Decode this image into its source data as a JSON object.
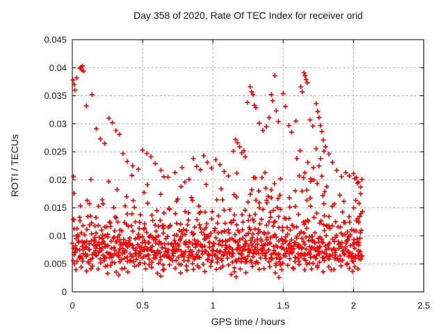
{
  "chart_data": {
    "type": "scatter",
    "title": "Day 358 of 2020, Rate Of TEC Index for receiver orid",
    "xlabel": "GPS time / hours",
    "ylabel": "ROTI / TECUs",
    "xlim": [
      0,
      2.5
    ],
    "ylim": [
      0,
      0.045
    ],
    "xticks": {
      "values": [
        0,
        0.5,
        1,
        1.5,
        2,
        2.5
      ],
      "labels": [
        "0",
        "0.5",
        "1",
        "1.5",
        "2",
        "2.5"
      ]
    },
    "yticks": {
      "values": [
        0,
        0.005,
        0.01,
        0.015,
        0.02,
        0.025,
        0.03,
        0.035,
        0.04,
        0.045
      ],
      "labels": [
        "0",
        "0.005",
        "0.01",
        "0.015",
        "0.02",
        "0.025",
        "0.03",
        "0.035",
        "0.04",
        "0.045"
      ]
    },
    "grid": {
      "style": "dashed",
      "color": "#a0a0a0"
    },
    "legend": "none",
    "marker": {
      "shape": "plus",
      "color": "#ff0000",
      "half_size": 3.4,
      "stroke_width": 1.7
    },
    "x_data_range": [
      0,
      2.07
    ],
    "notable_points": [
      [
        0.005,
        0.0378
      ],
      [
        0.012,
        0.037
      ],
      [
        0.018,
        0.036
      ],
      [
        0.008,
        0.0206
      ],
      [
        0.03,
        0.0382
      ],
      [
        0.055,
        0.0399
      ],
      [
        0.062,
        0.0401
      ],
      [
        0.068,
        0.0396
      ],
      [
        0.072,
        0.0403
      ],
      [
        0.08,
        0.0394
      ],
      [
        0.1,
        0.0332
      ],
      [
        0.14,
        0.0352
      ],
      [
        0.17,
        0.0291
      ],
      [
        0.2,
        0.0273
      ],
      [
        0.23,
        0.0265
      ],
      [
        0.26,
        0.031
      ],
      [
        0.285,
        0.0302
      ],
      [
        0.31,
        0.0288
      ],
      [
        0.335,
        0.0281
      ],
      [
        0.36,
        0.0247
      ],
      [
        0.39,
        0.0233
      ],
      [
        0.43,
        0.0225
      ],
      [
        0.47,
        0.0219
      ],
      [
        0.5,
        0.0253
      ],
      [
        0.53,
        0.0247
      ],
      [
        0.56,
        0.0241
      ],
      [
        0.59,
        0.0229
      ],
      [
        0.63,
        0.0217
      ],
      [
        0.68,
        0.0205
      ],
      [
        0.73,
        0.0213
      ],
      [
        0.78,
        0.0222
      ],
      [
        0.8,
        0.0196
      ],
      [
        0.83,
        0.0201
      ],
      [
        0.86,
        0.0238
      ],
      [
        0.885,
        0.0224
      ],
      [
        0.91,
        0.0218
      ],
      [
        0.935,
        0.0243
      ],
      [
        0.96,
        0.0231
      ],
      [
        0.99,
        0.0221
      ],
      [
        1.02,
        0.0236
      ],
      [
        1.05,
        0.0227
      ],
      [
        1.08,
        0.0215
      ],
      [
        1.11,
        0.0207
      ],
      [
        1.145,
        0.0251
      ],
      [
        1.16,
        0.0272
      ],
      [
        1.175,
        0.0266
      ],
      [
        1.19,
        0.0259
      ],
      [
        1.205,
        0.0248
      ],
      [
        1.22,
        0.0252
      ],
      [
        1.23,
        0.0241
      ],
      [
        1.245,
        0.0338
      ],
      [
        1.265,
        0.0366
      ],
      [
        1.275,
        0.0357
      ],
      [
        1.285,
        0.0352
      ],
      [
        1.295,
        0.0333
      ],
      [
        1.305,
        0.0329
      ],
      [
        1.33,
        0.0301
      ],
      [
        1.355,
        0.0288
      ],
      [
        1.38,
        0.0295
      ],
      [
        1.4,
        0.0311
      ],
      [
        1.415,
        0.0352
      ],
      [
        1.425,
        0.0341
      ],
      [
        1.44,
        0.0386
      ],
      [
        1.45,
        0.0323
      ],
      [
        1.465,
        0.0304
      ],
      [
        1.5,
        0.0354
      ],
      [
        1.515,
        0.0331
      ],
      [
        1.54,
        0.0297
      ],
      [
        1.56,
        0.0285
      ],
      [
        1.59,
        0.0305
      ],
      [
        1.625,
        0.0366
      ],
      [
        1.635,
        0.0357
      ],
      [
        1.648,
        0.0391
      ],
      [
        1.655,
        0.0386
      ],
      [
        1.662,
        0.0379
      ],
      [
        1.67,
        0.0373
      ],
      [
        1.69,
        0.0307
      ],
      [
        1.71,
        0.0296
      ],
      [
        1.735,
        0.0336
      ],
      [
        1.745,
        0.0322
      ],
      [
        1.755,
        0.0311
      ],
      [
        1.765,
        0.0297
      ],
      [
        1.775,
        0.0286
      ],
      [
        1.785,
        0.0271
      ],
      [
        1.8,
        0.0259
      ],
      [
        1.825,
        0.0246
      ],
      [
        1.85,
        0.0231
      ],
      [
        1.88,
        0.0217
      ],
      [
        1.915,
        0.0206
      ],
      [
        1.945,
        0.0213
      ],
      [
        1.97,
        0.0207
      ],
      [
        2.0,
        0.0211
      ],
      [
        2.02,
        0.0204
      ],
      [
        2.035,
        0.0196
      ],
      [
        2.05,
        0.0187
      ],
      [
        2.06,
        0.0201
      ],
      [
        0.25,
        0.0033
      ],
      [
        0.33,
        0.003
      ],
      [
        0.63,
        0.0028
      ],
      [
        0.77,
        0.0034
      ],
      [
        1.13,
        0.0031
      ],
      [
        1.165,
        0.0027
      ],
      [
        1.47,
        0.0026
      ],
      [
        1.97,
        0.0042
      ]
    ],
    "band_layers": [
      {
        "name": "core-band",
        "x_start": 0.005,
        "x_step": 0.01,
        "count": 206,
        "y_jitter": 0.0006,
        "y_cycle": [
          0.0078,
          0.0064,
          0.0091,
          0.007,
          0.0085,
          0.0059,
          0.0102,
          0.0074,
          0.0088,
          0.0067,
          0.0096,
          0.0057,
          0.0081,
          0.0108,
          0.0062,
          0.0093,
          0.0071
        ]
      },
      {
        "name": "low-band",
        "x_start": 0.012,
        "x_step": 0.019,
        "count": 108,
        "y_jitter": 0.0004,
        "y_cycle": [
          0.0052,
          0.0043,
          0.0066,
          0.0048,
          0.0071,
          0.0039,
          0.0058,
          0.0045,
          0.0063,
          0.0037,
          0.0055
        ]
      },
      {
        "name": "mid-band",
        "x_start": 0.008,
        "x_step": 0.024,
        "count": 86,
        "y_jitter": 0.0008,
        "y_cycle": [
          0.0122,
          0.0105,
          0.0146,
          0.0113,
          0.0132,
          0.0158,
          0.0101,
          0.0139,
          0.0118,
          0.0165,
          0.0109,
          0.0127,
          0.0151
        ]
      },
      {
        "name": "upper-sparse",
        "x_start": 0.03,
        "x_step": 0.058,
        "count": 35,
        "y_jitter": 0.0009,
        "y_cycle": [
          0.0185,
          0.0171,
          0.0206,
          0.0166,
          0.0195,
          0.0177,
          0.0162,
          0.0199,
          0.0169
        ]
      },
      {
        "name": "dense-core-2",
        "x_start": 0.002,
        "x_step": 0.013,
        "count": 159,
        "y_jitter": 0.0005,
        "y_cycle": [
          0.0083,
          0.0069,
          0.0077,
          0.009,
          0.0064,
          0.0086,
          0.0073
        ]
      },
      {
        "name": "dense-core-3",
        "x_start": 0.004,
        "x_step": 0.009,
        "count": 229,
        "y_jitter": 0.0007,
        "y_cycle": [
          0.0058,
          0.0112,
          0.0079,
          0.0049,
          0.0095,
          0.0068,
          0.0121,
          0.0087,
          0.0054,
          0.0104,
          0.0072,
          0.0118,
          0.0061,
          0.0092,
          0.0046,
          0.0125,
          0.0083,
          0.0066,
          0.0099
        ]
      },
      {
        "name": "mid-band-2",
        "x_start": 0.006,
        "x_step": 0.016,
        "count": 129,
        "y_jitter": 0.001,
        "y_cycle": [
          0.0131,
          0.0076,
          0.0108,
          0.0143,
          0.0069,
          0.0096,
          0.0084,
          0.0119
        ]
      },
      {
        "name": "end-strip",
        "x_start": 2.015,
        "x_step": 0.005,
        "count": 11,
        "y_jitter": 0.0012,
        "y_cycle": [
          0.0155,
          0.0098,
          0.0182,
          0.012,
          0.0076
        ]
      },
      {
        "name": "riser-1p3",
        "x_start": 1.25,
        "x_step": 0.012,
        "count": 20,
        "y_jitter": 0.0012,
        "y_cycle": [
          0.0172,
          0.0148,
          0.0192,
          0.0136,
          0.0205,
          0.016
        ]
      },
      {
        "name": "riser-1p7",
        "x_start": 1.6,
        "x_step": 0.011,
        "count": 19,
        "y_jitter": 0.0015,
        "y_cycle": [
          0.0224,
          0.0196,
          0.0246,
          0.018,
          0.021
        ]
      }
    ],
    "colors": {
      "marker": "#ff0000",
      "axis": "#000000",
      "grid": "#a0a0a0",
      "text": "#1a1a1a",
      "background": "#ffffff"
    }
  }
}
